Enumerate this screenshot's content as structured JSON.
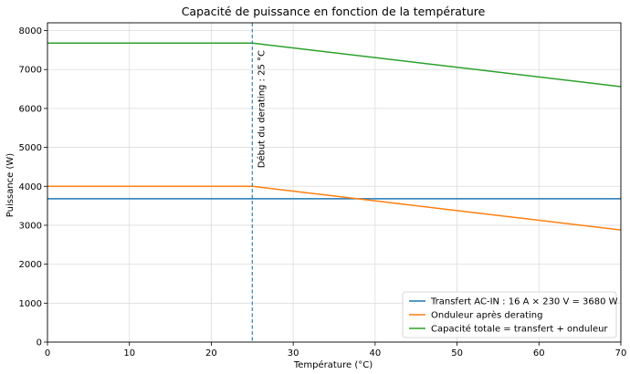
{
  "chart_data": {
    "type": "line",
    "title": "Capacité de puissance en fonction de la température",
    "xlabel": "Température (°C)",
    "ylabel": "Puissance (W)",
    "xlim": [
      0,
      70
    ],
    "ylim": [
      0,
      8200
    ],
    "xticks": [
      0,
      10,
      20,
      30,
      40,
      50,
      60,
      70
    ],
    "yticks": [
      0,
      1000,
      2000,
      3000,
      4000,
      5000,
      6000,
      7000,
      8000
    ],
    "grid": true,
    "legend_position": "bottom-right",
    "series": [
      {
        "name": "Transfert AC-IN : 16 A × 230 V = 3680 W",
        "color": "#1f77b4",
        "x": [
          0,
          25,
          70
        ],
        "y": [
          3680,
          3680,
          3680
        ]
      },
      {
        "name": "Onduleur après derating",
        "color": "#ff7f0e",
        "x": [
          0,
          25,
          70
        ],
        "y": [
          4000,
          4000,
          2880
        ]
      },
      {
        "name": "Capacité totale = transfert + onduleur",
        "color": "#2ca02c",
        "x": [
          0,
          25,
          70
        ],
        "y": [
          7680,
          7680,
          6560
        ]
      }
    ],
    "annotations": [
      {
        "type": "vline",
        "x": 25,
        "color": "#1f77b4",
        "label": "Début du derating : 25 °C"
      }
    ]
  }
}
